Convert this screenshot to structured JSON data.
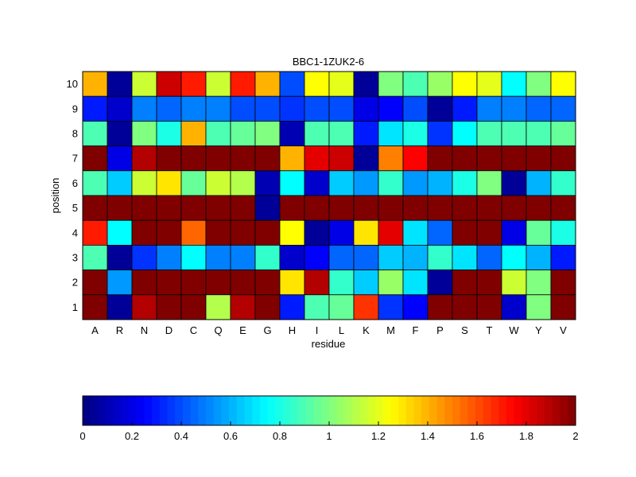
{
  "chart_data": {
    "type": "heatmap",
    "title": "BBC1-1ZUK2-6",
    "xlabel": "residue",
    "ylabel": "position",
    "x_categories": [
      "A",
      "R",
      "N",
      "D",
      "C",
      "Q",
      "E",
      "G",
      "H",
      "I",
      "L",
      "K",
      "M",
      "F",
      "P",
      "S",
      "T",
      "W",
      "Y",
      "V"
    ],
    "y_categories": [
      "10",
      "9",
      "8",
      "7",
      "6",
      "5",
      "4",
      "3",
      "2",
      "1"
    ],
    "values": [
      [
        1.4,
        0.05,
        1.15,
        1.85,
        1.7,
        1.15,
        1.7,
        1.4,
        0.4,
        1.25,
        1.2,
        0.05,
        1.0,
        0.9,
        1.05,
        1.25,
        1.2,
        0.75,
        1.0,
        1.25
      ],
      [
        0.3,
        0.15,
        0.5,
        0.45,
        0.5,
        0.5,
        0.4,
        0.4,
        0.35,
        0.4,
        0.4,
        0.2,
        0.25,
        0.4,
        0.05,
        0.3,
        0.5,
        0.5,
        0.45,
        0.45
      ],
      [
        0.9,
        0.05,
        1.0,
        0.8,
        1.4,
        0.9,
        0.95,
        1.0,
        0.1,
        0.9,
        0.9,
        0.3,
        0.7,
        0.8,
        0.35,
        0.75,
        0.9,
        0.9,
        0.9,
        0.95
      ],
      [
        2.0,
        0.2,
        1.9,
        2.0,
        2.0,
        2.0,
        2.0,
        2.0,
        1.4,
        1.8,
        1.85,
        0.05,
        1.5,
        1.75,
        2.0,
        2.0,
        2.0,
        2.0,
        2.0,
        2.0
      ],
      [
        0.9,
        0.65,
        1.15,
        1.3,
        0.95,
        1.15,
        1.1,
        0.1,
        0.75,
        0.15,
        0.65,
        0.55,
        0.85,
        0.55,
        0.6,
        0.8,
        1.0,
        0.05,
        0.6,
        0.85
      ],
      [
        2.0,
        2.0,
        2.0,
        2.0,
        2.0,
        2.0,
        2.0,
        0.05,
        2.0,
        2.0,
        2.0,
        2.0,
        2.0,
        2.0,
        2.0,
        2.0,
        2.0,
        2.0,
        2.0,
        2.0
      ],
      [
        1.7,
        0.75,
        2.0,
        2.0,
        1.55,
        2.0,
        2.0,
        2.0,
        1.25,
        0.05,
        0.2,
        1.3,
        1.8,
        0.7,
        0.45,
        2.0,
        2.0,
        0.2,
        0.95,
        0.8
      ],
      [
        0.9,
        0.05,
        0.35,
        0.5,
        0.75,
        0.5,
        0.5,
        0.85,
        0.15,
        0.25,
        0.45,
        0.45,
        0.65,
        0.6,
        0.85,
        0.7,
        0.45,
        0.75,
        0.6,
        0.3
      ],
      [
        2.0,
        0.55,
        2.0,
        2.0,
        2.0,
        2.0,
        2.0,
        2.0,
        1.3,
        1.9,
        0.85,
        0.65,
        1.05,
        0.7,
        0.05,
        2.0,
        2.0,
        1.15,
        1.0,
        2.0
      ],
      [
        2.0,
        0.05,
        1.9,
        2.0,
        2.0,
        1.1,
        1.9,
        2.0,
        0.3,
        0.9,
        0.95,
        1.65,
        0.35,
        0.25,
        2.0,
        2.0,
        2.0,
        0.15,
        1.0,
        2.0
      ]
    ],
    "colormap": "jet",
    "color_range": [
      0,
      2
    ],
    "colorbar": {
      "orientation": "horizontal",
      "placement": "bottom",
      "ticks": [
        "0",
        "0.2",
        "0.4",
        "0.6",
        "0.8",
        "1",
        "1.2",
        "1.4",
        "1.6",
        "1.8",
        "2"
      ]
    },
    "grid": true
  }
}
